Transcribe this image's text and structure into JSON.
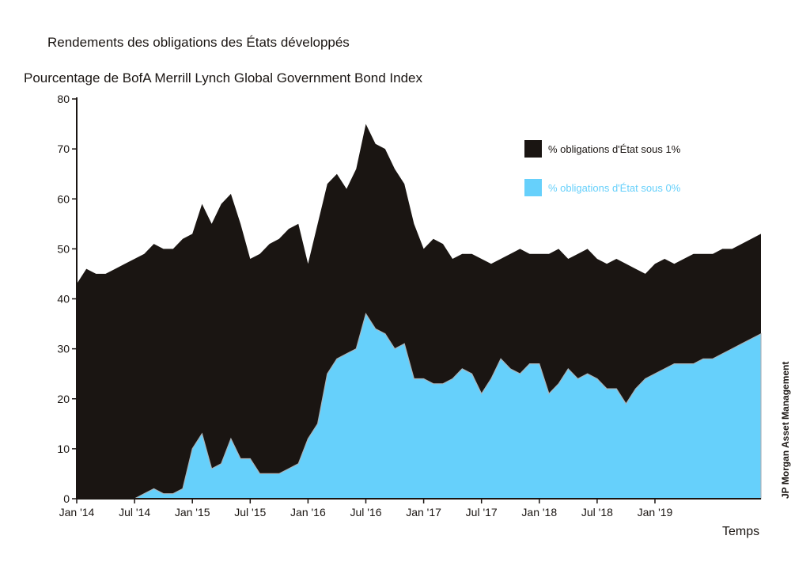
{
  "title": "Rendements des obligations des États développés",
  "credit": "JP Morgan Asset Management",
  "colors": {
    "series1": "#1a1512",
    "series2": "#66d0fb",
    "series2_edge": "#a9b4ba"
  },
  "chart_data": {
    "type": "area",
    "title": "Rendements des obligations des États développés",
    "ylabel": "Pourcentage de BofA Merrill Lynch Global Government Bond Index",
    "xlabel": "Temps",
    "ylim": [
      0,
      80
    ],
    "yticks": [
      0,
      10,
      20,
      30,
      40,
      50,
      60,
      70,
      80
    ],
    "xlim": [
      "2014-01",
      "2019-12"
    ],
    "xtick_labels": [
      "Jan '14",
      "Jul '14",
      "Jan '15",
      "Jul '15",
      "Jan '16",
      "Jul '16",
      "Jan '17",
      "Jul '17",
      "Jan '18",
      "Jul '18",
      "Jan '19"
    ],
    "xtick_dates": [
      "2014-01",
      "2014-07",
      "2015-01",
      "2015-07",
      "2016-01",
      "2016-07",
      "2017-01",
      "2017-07",
      "2018-01",
      "2018-07",
      "2019-01"
    ],
    "legend_position": "top-right",
    "x": [
      "2014-01",
      "2014-02",
      "2014-03",
      "2014-04",
      "2014-05",
      "2014-06",
      "2014-07",
      "2014-08",
      "2014-09",
      "2014-10",
      "2014-11",
      "2014-12",
      "2015-01",
      "2015-02",
      "2015-03",
      "2015-04",
      "2015-05",
      "2015-06",
      "2015-07",
      "2015-08",
      "2015-09",
      "2015-10",
      "2015-11",
      "2015-12",
      "2016-01",
      "2016-02",
      "2016-03",
      "2016-04",
      "2016-05",
      "2016-06",
      "2016-07",
      "2016-08",
      "2016-09",
      "2016-10",
      "2016-11",
      "2016-12",
      "2017-01",
      "2017-02",
      "2017-03",
      "2017-04",
      "2017-05",
      "2017-06",
      "2017-07",
      "2017-08",
      "2017-09",
      "2017-10",
      "2017-11",
      "2017-12",
      "2018-01",
      "2018-02",
      "2018-03",
      "2018-04",
      "2018-05",
      "2018-06",
      "2018-07",
      "2018-08",
      "2018-09",
      "2018-10",
      "2018-11",
      "2018-12",
      "2019-01",
      "2019-02",
      "2019-03",
      "2019-04",
      "2019-05",
      "2019-06",
      "2019-07",
      "2019-08",
      "2019-09",
      "2019-10",
      "2019-11",
      "2019-12"
    ],
    "series": [
      {
        "name": "% obligations d'État sous 1%",
        "values": [
          43,
          46,
          45,
          45,
          46,
          47,
          48,
          49,
          51,
          50,
          50,
          52,
          53,
          59,
          55,
          59,
          61,
          55,
          48,
          49,
          51,
          52,
          54,
          55,
          47,
          55,
          63,
          65,
          62,
          66,
          75,
          71,
          70,
          66,
          63,
          55,
          50,
          52,
          51,
          48,
          49,
          49,
          48,
          47,
          48,
          49,
          50,
          49,
          49,
          49,
          50,
          48,
          49,
          50,
          48,
          47,
          48,
          47,
          46,
          45,
          47,
          48,
          47,
          48,
          49,
          49,
          49,
          50,
          50,
          51,
          52,
          53
        ]
      },
      {
        "name": "% obligations d'État sous 0%",
        "values": [
          0,
          0,
          0,
          0,
          0,
          0,
          0,
          1,
          2,
          1,
          1,
          2,
          10,
          13,
          6,
          7,
          12,
          8,
          8,
          5,
          5,
          5,
          6,
          7,
          12,
          15,
          25,
          28,
          29,
          30,
          37,
          34,
          33,
          30,
          31,
          24,
          24,
          23,
          23,
          24,
          26,
          25,
          21,
          24,
          28,
          26,
          25,
          27,
          27,
          21,
          23,
          26,
          24,
          25,
          24,
          22,
          22,
          19,
          22,
          24,
          25,
          26,
          27,
          27,
          27,
          28,
          28,
          29,
          30,
          31,
          32,
          33
        ]
      }
    ]
  }
}
